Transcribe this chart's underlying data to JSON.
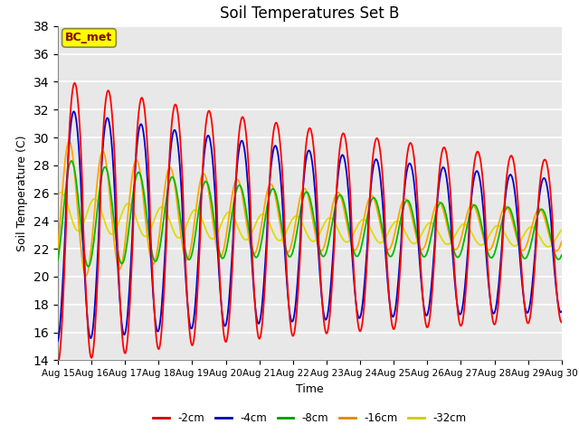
{
  "title": "Soil Temperatures Set B",
  "xlabel": "Time",
  "ylabel": "Soil Temperature (C)",
  "ylim": [
    14,
    38
  ],
  "yticks": [
    14,
    16,
    18,
    20,
    22,
    24,
    26,
    28,
    30,
    32,
    34,
    36,
    38
  ],
  "annotation": "BC_met",
  "annotation_color": "#8B0000",
  "annotation_bg": "#FFFF00",
  "background_color": "#E8E8E8",
  "colors": {
    "-2cm": "#FF0000",
    "-4cm": "#0000CC",
    "-8cm": "#00BB00",
    "-16cm": "#FFA500",
    "-32cm": "#DDDD00"
  },
  "start_day": 15,
  "end_day": 30,
  "hours_per_day": 24
}
